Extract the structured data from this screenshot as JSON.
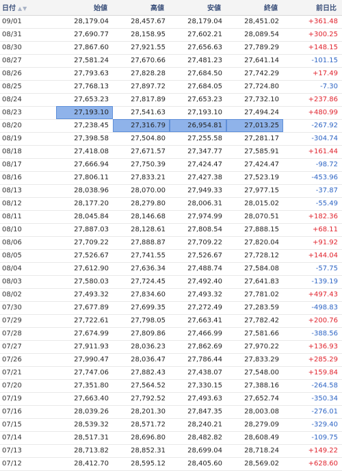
{
  "header": {
    "date": "日付",
    "open": "始値",
    "high": "高値",
    "low": "安値",
    "close": "終値",
    "change": "前日比"
  },
  "colors": {
    "positive": "#e0222c",
    "negative": "#2d64c4",
    "selection": "#8fb3ea"
  },
  "selection": [
    {
      "row": 7,
      "cols": [
        "open"
      ]
    },
    {
      "row": 8,
      "cols": [
        "high",
        "low",
        "close"
      ]
    }
  ],
  "rows": [
    {
      "date": "09/01",
      "open": "28,179.04",
      "high": "28,457.67",
      "low": "28,179.04",
      "close": "28,451.02",
      "change": "+361.48"
    },
    {
      "date": "08/31",
      "open": "27,690.77",
      "high": "28,158.95",
      "low": "27,602.21",
      "close": "28,089.54",
      "change": "+300.25"
    },
    {
      "date": "08/30",
      "open": "27,867.60",
      "high": "27,921.55",
      "low": "27,656.63",
      "close": "27,789.29",
      "change": "+148.15"
    },
    {
      "date": "08/27",
      "open": "27,581.24",
      "high": "27,670.66",
      "low": "27,481.23",
      "close": "27,641.14",
      "change": "-101.15"
    },
    {
      "date": "08/26",
      "open": "27,793.63",
      "high": "27,828.28",
      "low": "27,684.50",
      "close": "27,742.29",
      "change": "+17.49"
    },
    {
      "date": "08/25",
      "open": "27,768.13",
      "high": "27,897.72",
      "low": "27,684.05",
      "close": "27,724.80",
      "change": "-7.30"
    },
    {
      "date": "08/24",
      "open": "27,653.23",
      "high": "27,817.89",
      "low": "27,653.23",
      "close": "27,732.10",
      "change": "+237.86"
    },
    {
      "date": "08/23",
      "open": "27,193.10",
      "high": "27,541.63",
      "low": "27,193.10",
      "close": "27,494.24",
      "change": "+480.99"
    },
    {
      "date": "08/20",
      "open": "27,238.45",
      "high": "27,316.79",
      "low": "26,954.81",
      "close": "27,013.25",
      "change": "-267.92"
    },
    {
      "date": "08/19",
      "open": "27,398.58",
      "high": "27,504.80",
      "low": "27,255.58",
      "close": "27,281.17",
      "change": "-304.74"
    },
    {
      "date": "08/18",
      "open": "27,418.08",
      "high": "27,671.57",
      "low": "27,347.77",
      "close": "27,585.91",
      "change": "+161.44"
    },
    {
      "date": "08/17",
      "open": "27,666.94",
      "high": "27,750.39",
      "low": "27,424.47",
      "close": "27,424.47",
      "change": "-98.72"
    },
    {
      "date": "08/16",
      "open": "27,806.11",
      "high": "27,833.21",
      "low": "27,427.38",
      "close": "27,523.19",
      "change": "-453.96"
    },
    {
      "date": "08/13",
      "open": "28,038.96",
      "high": "28,070.00",
      "low": "27,949.33",
      "close": "27,977.15",
      "change": "-37.87"
    },
    {
      "date": "08/12",
      "open": "28,177.20",
      "high": "28,279.80",
      "low": "28,006.31",
      "close": "28,015.02",
      "change": "-55.49"
    },
    {
      "date": "08/11",
      "open": "28,045.84",
      "high": "28,146.68",
      "low": "27,974.99",
      "close": "28,070.51",
      "change": "+182.36"
    },
    {
      "date": "08/10",
      "open": "27,887.03",
      "high": "28,128.61",
      "low": "27,808.54",
      "close": "27,888.15",
      "change": "+68.11"
    },
    {
      "date": "08/06",
      "open": "27,709.22",
      "high": "27,888.87",
      "low": "27,709.22",
      "close": "27,820.04",
      "change": "+91.92"
    },
    {
      "date": "08/05",
      "open": "27,526.67",
      "high": "27,741.55",
      "low": "27,526.67",
      "close": "27,728.12",
      "change": "+144.04"
    },
    {
      "date": "08/04",
      "open": "27,612.90",
      "high": "27,636.34",
      "low": "27,488.74",
      "close": "27,584.08",
      "change": "-57.75"
    },
    {
      "date": "08/03",
      "open": "27,580.03",
      "high": "27,724.45",
      "low": "27,492.40",
      "close": "27,641.83",
      "change": "-139.19"
    },
    {
      "date": "08/02",
      "open": "27,493.32",
      "high": "27,834.60",
      "low": "27,493.32",
      "close": "27,781.02",
      "change": "+497.43"
    },
    {
      "date": "07/30",
      "open": "27,677.89",
      "high": "27,699.35",
      "low": "27,272.49",
      "close": "27,283.59",
      "change": "-498.83"
    },
    {
      "date": "07/29",
      "open": "27,722.61",
      "high": "27,798.05",
      "low": "27,663.41",
      "close": "27,782.42",
      "change": "+200.76"
    },
    {
      "date": "07/28",
      "open": "27,674.99",
      "high": "27,809.86",
      "low": "27,466.99",
      "close": "27,581.66",
      "change": "-388.56"
    },
    {
      "date": "07/27",
      "open": "27,911.93",
      "high": "28,036.23",
      "low": "27,862.69",
      "close": "27,970.22",
      "change": "+136.93"
    },
    {
      "date": "07/26",
      "open": "27,990.47",
      "high": "28,036.47",
      "low": "27,786.44",
      "close": "27,833.29",
      "change": "+285.29"
    },
    {
      "date": "07/21",
      "open": "27,747.06",
      "high": "27,882.43",
      "low": "27,438.07",
      "close": "27,548.00",
      "change": "+159.84"
    },
    {
      "date": "07/20",
      "open": "27,351.80",
      "high": "27,564.52",
      "low": "27,330.15",
      "close": "27,388.16",
      "change": "-264.58"
    },
    {
      "date": "07/19",
      "open": "27,663.40",
      "high": "27,792.52",
      "low": "27,493.63",
      "close": "27,652.74",
      "change": "-350.34"
    },
    {
      "date": "07/16",
      "open": "28,039.26",
      "high": "28,201.30",
      "low": "27,847.35",
      "close": "28,003.08",
      "change": "-276.01"
    },
    {
      "date": "07/15",
      "open": "28,539.32",
      "high": "28,571.72",
      "low": "28,240.21",
      "close": "28,279.09",
      "change": "-329.40"
    },
    {
      "date": "07/14",
      "open": "28,517.31",
      "high": "28,696.80",
      "low": "28,482.82",
      "close": "28,608.49",
      "change": "-109.75"
    },
    {
      "date": "07/13",
      "open": "28,713.82",
      "high": "28,852.31",
      "low": "28,699.04",
      "close": "28,718.24",
      "change": "+149.22"
    },
    {
      "date": "07/12",
      "open": "28,412.70",
      "high": "28,595.12",
      "low": "28,405.60",
      "close": "28,569.02",
      "change": "+628.60"
    }
  ]
}
